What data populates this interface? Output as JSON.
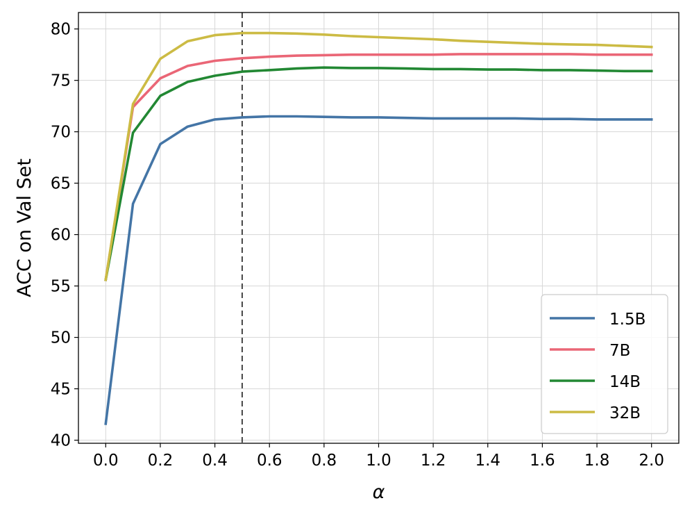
{
  "chart_data": {
    "type": "line",
    "title": "",
    "xlabel": "α",
    "ylabel": "ACC on Val Set",
    "xlim": [
      -0.1,
      2.1
    ],
    "ylim": [
      39.7,
      81.6
    ],
    "xticks": [
      0.0,
      0.2,
      0.4,
      0.6,
      0.8,
      1.0,
      1.2,
      1.4,
      1.6,
      1.8,
      2.0
    ],
    "xtick_labels": [
      "0.0",
      "0.2",
      "0.4",
      "0.6",
      "0.8",
      "1.0",
      "1.2",
      "1.4",
      "1.6",
      "1.8",
      "2.0"
    ],
    "yticks": [
      40,
      45,
      50,
      55,
      60,
      65,
      70,
      75,
      80
    ],
    "ytick_labels": [
      "40",
      "45",
      "50",
      "55",
      "60",
      "65",
      "70",
      "75",
      "80"
    ],
    "grid": true,
    "legend_position": "lower-right",
    "reference_line": {
      "x": 0.5,
      "style": "dashed",
      "color": "#444444"
    },
    "x": [
      0.0,
      0.1,
      0.2,
      0.3,
      0.4,
      0.5,
      0.6,
      0.7,
      0.8,
      0.9,
      1.0,
      1.1,
      1.2,
      1.3,
      1.4,
      1.5,
      1.6,
      1.7,
      1.8,
      1.9,
      2.0
    ],
    "series": [
      {
        "name": "1.5B",
        "color": "#4475a6",
        "values": [
          41.6,
          63.0,
          68.8,
          70.5,
          71.2,
          71.4,
          71.5,
          71.5,
          71.45,
          71.4,
          71.4,
          71.35,
          71.3,
          71.3,
          71.3,
          71.3,
          71.25,
          71.25,
          71.2,
          71.2,
          71.2
        ]
      },
      {
        "name": "7B",
        "color": "#ea6676",
        "values": [
          55.6,
          72.4,
          75.2,
          76.4,
          76.9,
          77.15,
          77.3,
          77.4,
          77.45,
          77.5,
          77.5,
          77.5,
          77.5,
          77.55,
          77.55,
          77.55,
          77.55,
          77.55,
          77.5,
          77.5,
          77.5
        ]
      },
      {
        "name": "14B",
        "color": "#228833",
        "values": [
          55.6,
          69.9,
          73.5,
          74.85,
          75.45,
          75.85,
          76.0,
          76.15,
          76.25,
          76.2,
          76.2,
          76.15,
          76.1,
          76.1,
          76.05,
          76.05,
          76.0,
          76.0,
          75.95,
          75.9,
          75.9
        ]
      },
      {
        "name": "32B",
        "color": "#ccbb44",
        "values": [
          55.6,
          72.7,
          77.1,
          78.8,
          79.4,
          79.6,
          79.6,
          79.55,
          79.45,
          79.3,
          79.2,
          79.1,
          79.0,
          78.85,
          78.75,
          78.65,
          78.55,
          78.5,
          78.45,
          78.35,
          78.25
        ]
      }
    ]
  }
}
